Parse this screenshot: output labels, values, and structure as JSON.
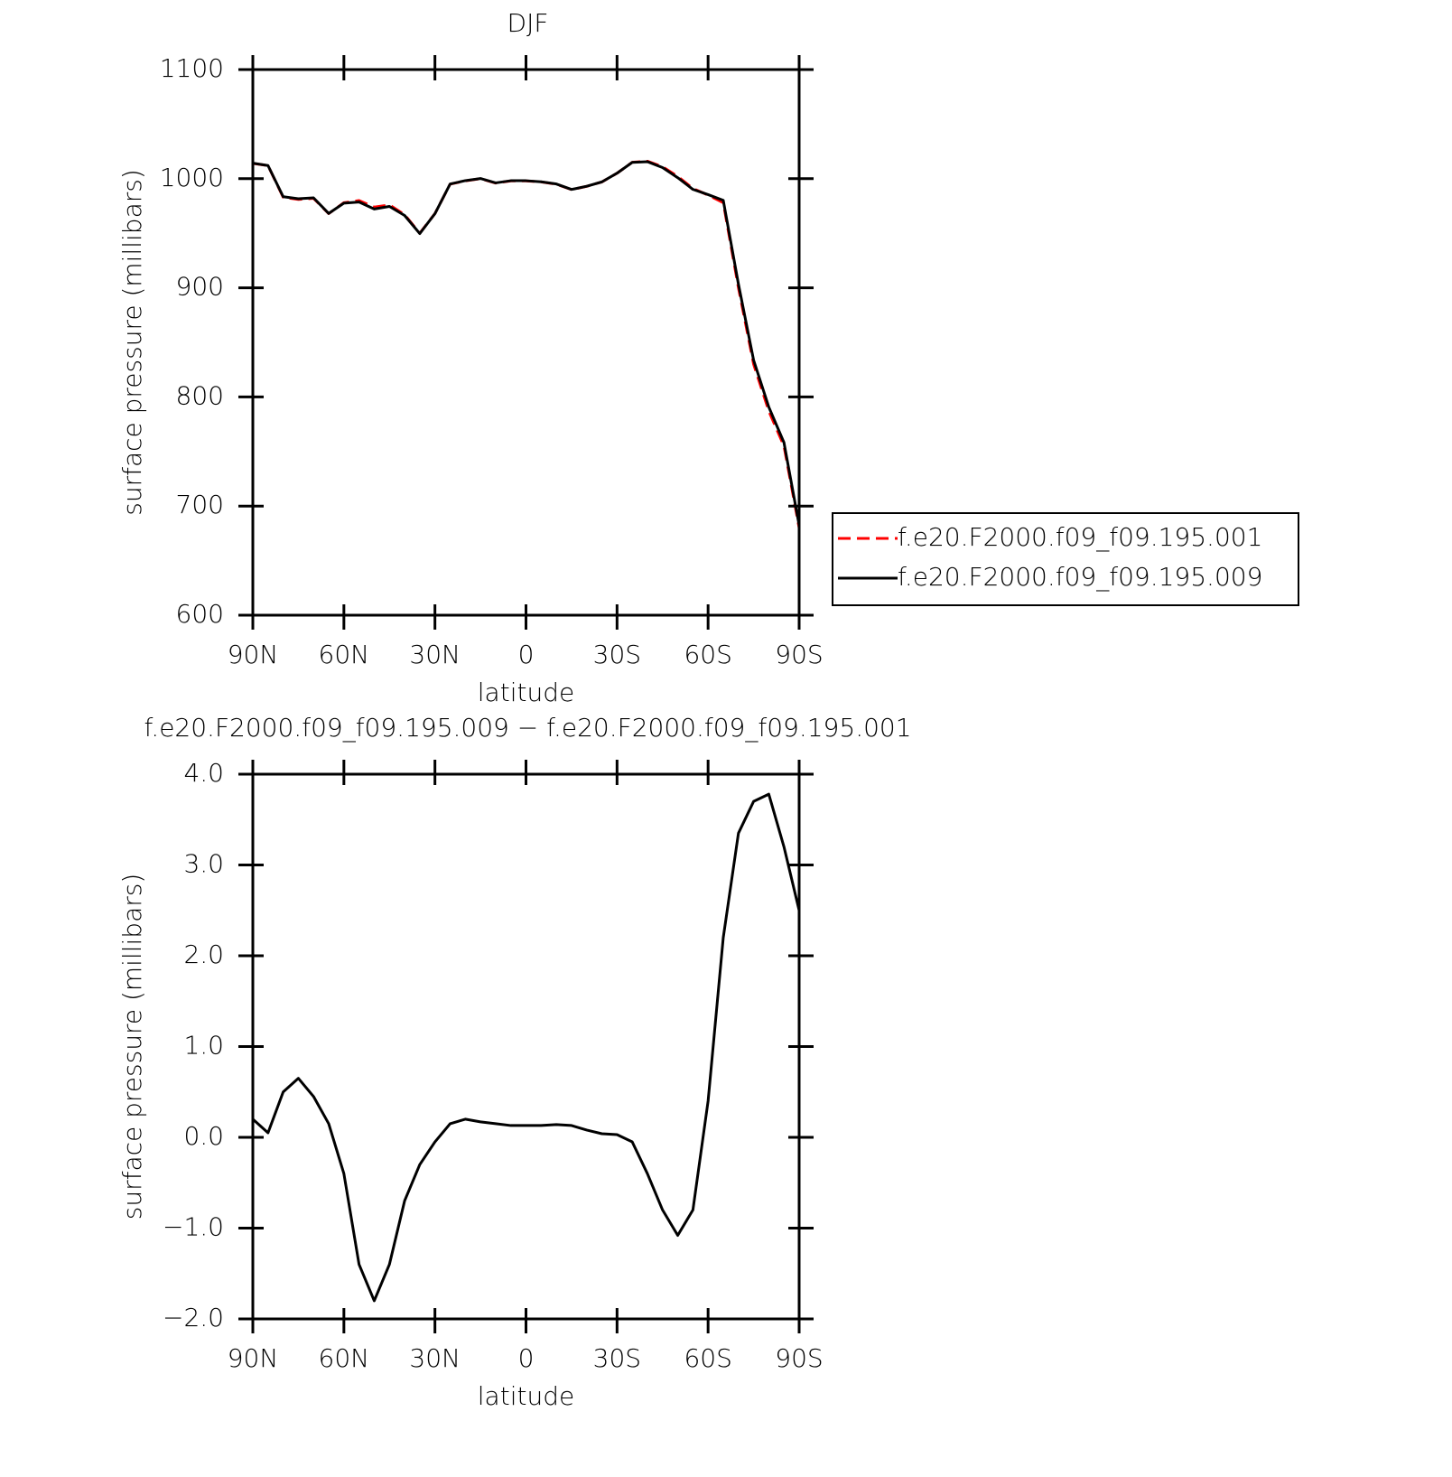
{
  "chart_data": [
    {
      "type": "line",
      "title": "DJF",
      "x_label": "latitude",
      "y_label": "surface pressure (millibars)",
      "x": [
        90,
        85,
        80,
        75,
        70,
        65,
        60,
        55,
        50,
        45,
        40,
        35,
        30,
        25,
        20,
        15,
        10,
        5,
        0,
        -5,
        -10,
        -15,
        -20,
        -25,
        -30,
        -35,
        -40,
        -45,
        -50,
        -55,
        -60,
        -65,
        -70,
        -75,
        -80,
        -85,
        -90
      ],
      "xlim": [
        90,
        -90
      ],
      "xticks": [
        {
          "value": 90,
          "label": "90N"
        },
        {
          "value": 60,
          "label": "60N"
        },
        {
          "value": 30,
          "label": "30N"
        },
        0,
        {
          "value": -30,
          "label": "30S"
        },
        {
          "value": -60,
          "label": "60S"
        },
        {
          "value": -90,
          "label": "90S"
        }
      ],
      "ylim": [
        600,
        1100
      ],
      "yticks": [
        600,
        700,
        800,
        900,
        1000,
        1100
      ],
      "legend": "right",
      "series": [
        {
          "name": "f.e20.F2000.f09_f09.195.001",
          "color": "#ff0000",
          "dash": "dashed",
          "values": [
            1014,
            1012,
            983,
            981,
            982,
            968,
            978,
            980,
            974,
            976,
            967,
            950,
            968,
            995,
            998,
            1000,
            996,
            998,
            998,
            997,
            995,
            990,
            993,
            997,
            1005,
            1015,
            1016,
            1011,
            1002,
            991,
            985,
            978,
            900,
            830,
            787,
            755,
            680
          ]
        },
        {
          "name": "f.e20.F2000.f09_f09.195.009",
          "color": "#000000",
          "dash": "solid",
          "values": [
            1014.2,
            1012.05,
            983.5,
            981.65,
            982.45,
            968.15,
            977.6,
            978.6,
            972.2,
            974.6,
            966.3,
            949.7,
            967.95,
            995.15,
            998.2,
            1000.17,
            996.15,
            998.13,
            998.13,
            997.13,
            995.14,
            990.13,
            993.08,
            997.04,
            1005.03,
            1014.95,
            1015.6,
            1010.2,
            1000.92,
            990.2,
            985.4,
            980.2,
            903.35,
            833.7,
            790.78,
            758.2,
            682.5
          ]
        }
      ]
    },
    {
      "type": "line",
      "title": "f.e20.F2000.f09_f09.195.009 − f.e20.F2000.f09_f09.195.001",
      "x_label": "latitude",
      "y_label": "surface pressure (millibars)",
      "x": [
        90,
        85,
        80,
        75,
        70,
        65,
        60,
        55,
        50,
        45,
        40,
        35,
        30,
        25,
        20,
        15,
        10,
        5,
        0,
        -5,
        -10,
        -15,
        -20,
        -25,
        -30,
        -35,
        -40,
        -45,
        -50,
        -55,
        -60,
        -65,
        -70,
        -75,
        -80,
        -85,
        -90
      ],
      "xlim": [
        90,
        -90
      ],
      "xticks": [
        {
          "value": 90,
          "label": "90N"
        },
        {
          "value": 60,
          "label": "60N"
        },
        {
          "value": 30,
          "label": "30N"
        },
        0,
        {
          "value": -30,
          "label": "30S"
        },
        {
          "value": -60,
          "label": "60S"
        },
        {
          "value": -90,
          "label": "90S"
        }
      ],
      "ylim": [
        -2,
        4
      ],
      "yticks": [
        {
          "value": -2,
          "label": "−2.0"
        },
        {
          "value": -1,
          "label": "−1.0"
        },
        {
          "value": 0,
          "label": "0.0"
        },
        {
          "value": 1,
          "label": "1.0"
        },
        {
          "value": 2,
          "label": "2.0"
        },
        {
          "value": 3,
          "label": "3.0"
        },
        {
          "value": 4,
          "label": "4.0"
        }
      ],
      "series": [
        {
          "color": "#000000",
          "dash": "solid",
          "values": [
            0.2,
            0.05,
            0.5,
            0.65,
            0.45,
            0.15,
            -0.4,
            -1.4,
            -1.8,
            -1.4,
            -0.7,
            -0.3,
            -0.05,
            0.15,
            0.2,
            0.17,
            0.15,
            0.13,
            0.13,
            0.13,
            0.14,
            0.13,
            0.08,
            0.04,
            0.03,
            -0.05,
            -0.4,
            -0.8,
            -1.08,
            -0.8,
            0.4,
            2.2,
            3.35,
            3.7,
            3.78,
            3.2,
            2.5
          ]
        }
      ]
    }
  ]
}
